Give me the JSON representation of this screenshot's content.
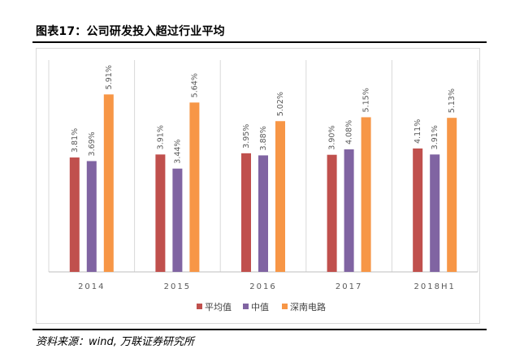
{
  "header": {
    "title": "图表17：公司研发投入超过行业平均"
  },
  "footer": {
    "source": "资料来源：wind, 万联证券研究所"
  },
  "chart_data": {
    "type": "bar",
    "title": "图表17：公司研发投入超过行业平均",
    "categories": [
      "2014",
      "2015",
      "2016",
      "2017",
      "2018H1"
    ],
    "series": [
      {
        "name": "平均值",
        "color": "#c0504d",
        "values": [
          3.81,
          3.91,
          3.95,
          3.9,
          4.11
        ],
        "labels": [
          "3.81%",
          "3.91%",
          "3.95%",
          "3.90%",
          "4.11%"
        ]
      },
      {
        "name": "中值",
        "color": "#8064a2",
        "values": [
          3.69,
          3.44,
          3.88,
          4.08,
          3.91
        ],
        "labels": [
          "3.69%",
          "3.44%",
          "3.88%",
          "4.08%",
          "3.91%"
        ]
      },
      {
        "name": "深南电路",
        "color": "#f79646",
        "values": [
          5.91,
          5.64,
          5.02,
          5.15,
          5.13
        ],
        "labels": [
          "5.91%",
          "5.64%",
          "5.02%",
          "5.15%",
          "5.13%"
        ]
      }
    ],
    "ylim": [
      0,
      6.5
    ],
    "xlabel": "",
    "ylabel": "",
    "grid": false,
    "legend_position": "bottom-center"
  }
}
